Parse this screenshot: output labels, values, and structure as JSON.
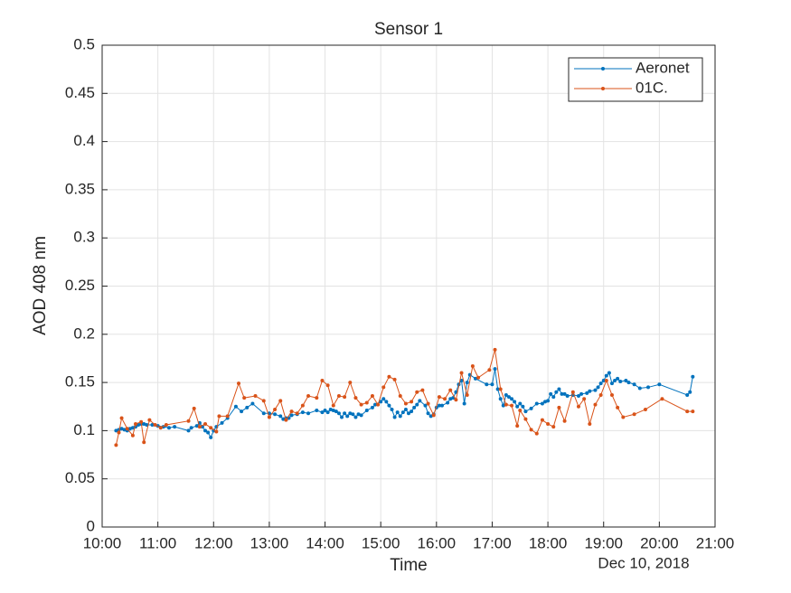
{
  "chart_data": {
    "type": "line",
    "title": "Sensor 1",
    "xlabel": "Time",
    "ylabel": "AOD 408 nm",
    "date_label": "Dec 10, 2018",
    "xlim": [
      10,
      21
    ],
    "xticks": [
      {
        "value": 10,
        "label": "10:00"
      },
      {
        "value": 11,
        "label": "11:00"
      },
      {
        "value": 12,
        "label": "12:00"
      },
      {
        "value": 13,
        "label": "13:00"
      },
      {
        "value": 14,
        "label": "14:00"
      },
      {
        "value": 15,
        "label": "15:00"
      },
      {
        "value": 16,
        "label": "16:00"
      },
      {
        "value": 17,
        "label": "17:00"
      },
      {
        "value": 18,
        "label": "18:00"
      },
      {
        "value": 19,
        "label": "19:00"
      },
      {
        "value": 20,
        "label": "20:00"
      },
      {
        "value": 21,
        "label": "21:00"
      }
    ],
    "ylim": [
      0,
      0.5
    ],
    "yticks": [
      0,
      0.05,
      0.1,
      0.15,
      0.2,
      0.25,
      0.3,
      0.35,
      0.4,
      0.45,
      0.5
    ],
    "grid": true,
    "legend": "northeast",
    "series": [
      {
        "name": "Aeronet",
        "color": "#0072bd",
        "x": [
          10.25,
          10.3,
          10.35,
          10.4,
          10.45,
          10.5,
          10.55,
          10.6,
          10.65,
          10.7,
          10.75,
          10.8,
          10.9,
          11.0,
          11.1,
          11.2,
          11.3,
          11.55,
          11.6,
          11.7,
          11.75,
          11.8,
          11.85,
          11.9,
          11.95,
          12.0,
          12.05,
          12.15,
          12.25,
          12.4,
          12.5,
          12.6,
          12.7,
          12.9,
          13.0,
          13.1,
          13.2,
          13.25,
          13.3,
          13.35,
          13.4,
          13.5,
          13.6,
          13.7,
          13.85,
          13.95,
          14.0,
          14.05,
          14.1,
          14.15,
          14.2,
          14.25,
          14.3,
          14.35,
          14.4,
          14.45,
          14.5,
          14.55,
          14.6,
          14.65,
          14.75,
          14.85,
          14.9,
          15.0,
          15.05,
          15.1,
          15.15,
          15.2,
          15.25,
          15.3,
          15.35,
          15.4,
          15.45,
          15.5,
          15.55,
          15.6,
          15.65,
          15.7,
          15.8,
          15.85,
          15.9,
          15.95,
          16.0,
          16.05,
          16.1,
          16.2,
          16.25,
          16.3,
          16.35,
          16.4,
          16.45,
          16.5,
          16.55,
          16.6,
          16.7,
          16.9,
          17.0,
          17.05,
          17.1,
          17.15,
          17.2,
          17.25,
          17.3,
          17.35,
          17.4,
          17.45,
          17.5,
          17.55,
          17.6,
          17.7,
          17.8,
          17.9,
          17.95,
          18.0,
          18.05,
          18.1,
          18.15,
          18.2,
          18.25,
          18.3,
          18.35,
          18.45,
          18.55,
          18.6,
          18.7,
          18.75,
          18.85,
          18.9,
          18.95,
          19.0,
          19.05,
          19.1,
          19.15,
          19.2,
          19.25,
          19.3,
          19.4,
          19.45,
          19.55,
          19.65,
          19.8,
          20.0,
          20.5,
          20.55,
          20.6
        ],
        "values": [
          0.1,
          0.101,
          0.102,
          0.101,
          0.1,
          0.102,
          0.103,
          0.104,
          0.106,
          0.107,
          0.107,
          0.106,
          0.106,
          0.105,
          0.104,
          0.103,
          0.104,
          0.1,
          0.103,
          0.105,
          0.108,
          0.104,
          0.1,
          0.098,
          0.093,
          0.1,
          0.104,
          0.108,
          0.113,
          0.125,
          0.12,
          0.124,
          0.128,
          0.118,
          0.118,
          0.117,
          0.115,
          0.112,
          0.113,
          0.113,
          0.116,
          0.117,
          0.119,
          0.118,
          0.121,
          0.119,
          0.121,
          0.119,
          0.122,
          0.121,
          0.12,
          0.118,
          0.114,
          0.118,
          0.115,
          0.118,
          0.117,
          0.114,
          0.117,
          0.116,
          0.121,
          0.124,
          0.127,
          0.13,
          0.133,
          0.13,
          0.126,
          0.122,
          0.114,
          0.119,
          0.115,
          0.119,
          0.122,
          0.118,
          0.12,
          0.124,
          0.127,
          0.131,
          0.126,
          0.118,
          0.115,
          0.117,
          0.124,
          0.126,
          0.126,
          0.129,
          0.133,
          0.134,
          0.14,
          0.148,
          0.152,
          0.128,
          0.15,
          0.158,
          0.154,
          0.148,
          0.148,
          0.164,
          0.143,
          0.133,
          0.126,
          0.137,
          0.135,
          0.133,
          0.13,
          0.125,
          0.128,
          0.125,
          0.12,
          0.123,
          0.128,
          0.128,
          0.13,
          0.131,
          0.138,
          0.135,
          0.14,
          0.143,
          0.138,
          0.138,
          0.136,
          0.137,
          0.136,
          0.138,
          0.139,
          0.141,
          0.142,
          0.145,
          0.149,
          0.152,
          0.157,
          0.16,
          0.149,
          0.152,
          0.154,
          0.151,
          0.152,
          0.15,
          0.148,
          0.144,
          0.145,
          0.148,
          0.137,
          0.14,
          0.156
        ]
      },
      {
        "name": "01C.",
        "color": "#d95319",
        "x": [
          10.25,
          10.3,
          10.35,
          10.45,
          10.55,
          10.6,
          10.7,
          10.75,
          10.85,
          10.95,
          11.05,
          11.15,
          11.55,
          11.65,
          11.75,
          11.85,
          11.95,
          12.05,
          12.1,
          12.25,
          12.45,
          12.55,
          12.75,
          12.9,
          13.0,
          13.1,
          13.2,
          13.3,
          13.4,
          13.5,
          13.6,
          13.7,
          13.85,
          13.95,
          14.05,
          14.15,
          14.25,
          14.35,
          14.45,
          14.55,
          14.65,
          14.75,
          14.85,
          14.95,
          15.05,
          15.15,
          15.25,
          15.35,
          15.45,
          15.55,
          15.65,
          15.75,
          15.85,
          15.95,
          16.05,
          16.15,
          16.25,
          16.35,
          16.45,
          16.55,
          16.65,
          16.75,
          16.95,
          17.05,
          17.15,
          17.25,
          17.35,
          17.45,
          17.5,
          17.6,
          17.7,
          17.8,
          17.9,
          18.0,
          18.1,
          18.2,
          18.3,
          18.45,
          18.55,
          18.65,
          18.75,
          18.85,
          18.95,
          19.05,
          19.15,
          19.25,
          19.35,
          19.55,
          19.75,
          20.05,
          20.5,
          20.6
        ],
        "values": [
          0.085,
          0.098,
          0.113,
          0.102,
          0.095,
          0.107,
          0.109,
          0.088,
          0.111,
          0.106,
          0.103,
          0.106,
          0.11,
          0.123,
          0.104,
          0.107,
          0.103,
          0.099,
          0.115,
          0.115,
          0.149,
          0.134,
          0.136,
          0.131,
          0.114,
          0.122,
          0.131,
          0.111,
          0.12,
          0.118,
          0.126,
          0.136,
          0.134,
          0.152,
          0.147,
          0.126,
          0.136,
          0.135,
          0.15,
          0.134,
          0.127,
          0.129,
          0.136,
          0.127,
          0.145,
          0.156,
          0.153,
          0.136,
          0.128,
          0.13,
          0.14,
          0.142,
          0.128,
          0.116,
          0.135,
          0.133,
          0.142,
          0.132,
          0.16,
          0.137,
          0.167,
          0.155,
          0.163,
          0.184,
          0.143,
          0.127,
          0.126,
          0.105,
          0.121,
          0.112,
          0.101,
          0.097,
          0.111,
          0.107,
          0.104,
          0.124,
          0.11,
          0.14,
          0.125,
          0.133,
          0.107,
          0.127,
          0.137,
          0.152,
          0.137,
          0.124,
          0.114,
          0.117,
          0.122,
          0.133,
          0.12,
          0.12
        ]
      }
    ]
  }
}
